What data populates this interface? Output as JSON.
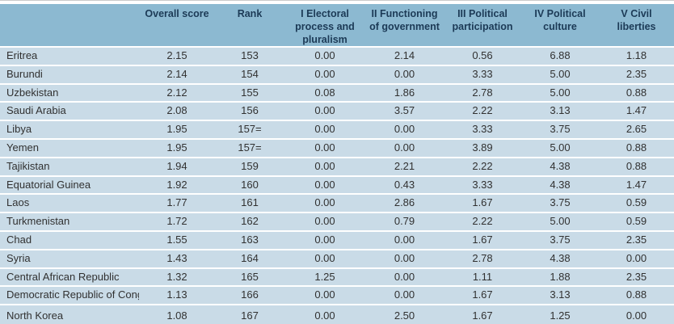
{
  "colors": {
    "header_bg": "#8cb9d1",
    "row_bg": "#c9dbe7",
    "separator": "#ffffff",
    "header_text": "#1c3a56",
    "body_text": "#313131"
  },
  "chart_data": {
    "type": "table",
    "columns": [
      "",
      "Overall score",
      "Rank",
      "I Electoral process and pluralism",
      "II Functioning of government",
      "III Political participation",
      "IV Political culture",
      "V Civil liberties"
    ],
    "rows": [
      [
        "Eritrea",
        "2.15",
        "153",
        "0.00",
        "2.14",
        "0.56",
        "6.88",
        "1.18"
      ],
      [
        "Burundi",
        "2.14",
        "154",
        "0.00",
        "0.00",
        "3.33",
        "5.00",
        "2.35"
      ],
      [
        "Uzbekistan",
        "2.12",
        "155",
        "0.08",
        "1.86",
        "2.78",
        "5.00",
        "0.88"
      ],
      [
        "Saudi Arabia",
        "2.08",
        "156",
        "0.00",
        "3.57",
        "2.22",
        "3.13",
        "1.47"
      ],
      [
        "Libya",
        "1.95",
        "157=",
        "0.00",
        "0.00",
        "3.33",
        "3.75",
        "2.65"
      ],
      [
        "Yemen",
        "1.95",
        "157=",
        "0.00",
        "0.00",
        "3.89",
        "5.00",
        "0.88"
      ],
      [
        "Tajikistan",
        "1.94",
        "159",
        "0.00",
        "2.21",
        "2.22",
        "4.38",
        "0.88"
      ],
      [
        "Equatorial Guinea",
        "1.92",
        "160",
        "0.00",
        "0.43",
        "3.33",
        "4.38",
        "1.47"
      ],
      [
        "Laos",
        "1.77",
        "161",
        "0.00",
        "2.86",
        "1.67",
        "3.75",
        "0.59"
      ],
      [
        "Turkmenistan",
        "1.72",
        "162",
        "0.00",
        "0.79",
        "2.22",
        "5.00",
        "0.59"
      ],
      [
        "Chad",
        "1.55",
        "163",
        "0.00",
        "0.00",
        "1.67",
        "3.75",
        "2.35"
      ],
      [
        "Syria",
        "1.43",
        "164",
        "0.00",
        "0.00",
        "2.78",
        "4.38",
        "0.00"
      ],
      [
        "Central African Republic",
        "1.32",
        "165",
        "1.25",
        "0.00",
        "1.11",
        "1.88",
        "2.35"
      ],
      [
        "Democratic Republic of Congo",
        "1.13",
        "166",
        "0.00",
        "0.00",
        "1.67",
        "3.13",
        "0.88"
      ],
      [
        "North Korea",
        "1.08",
        "167",
        "0.00",
        "2.50",
        "1.67",
        "1.25",
        "0.00"
      ]
    ]
  }
}
